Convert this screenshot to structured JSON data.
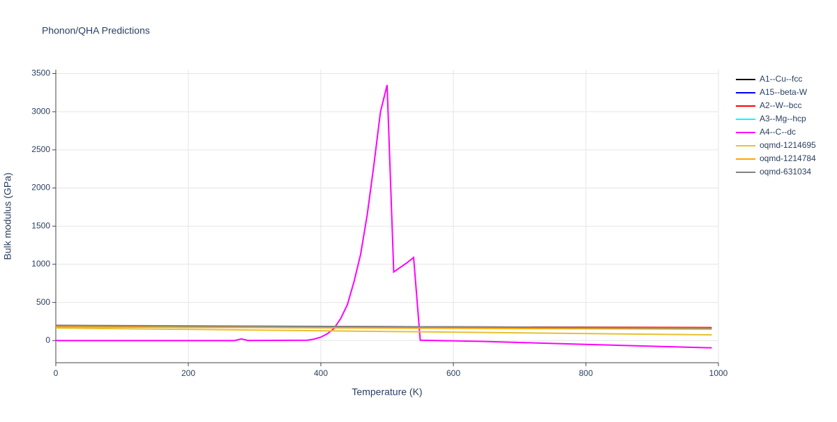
{
  "chart_data": {
    "type": "line",
    "title": "Phonon/QHA Predictions",
    "x_label": "Temperature (K)",
    "y_label": "Bulk modulus (GPa)",
    "xlim": [
      0,
      1000
    ],
    "ylim": [
      -290,
      3550
    ],
    "xticks": [
      0,
      200,
      400,
      600,
      800,
      1000
    ],
    "yticks": [
      0,
      500,
      1000,
      1500,
      2000,
      2500,
      3000,
      3500
    ],
    "grid": true,
    "legend": "right",
    "series": [
      {
        "name": "A1--Cu--fcc",
        "color": "#000000",
        "x": [
          0,
          990
        ],
        "values": [
          185,
          160
        ]
      },
      {
        "name": "A15--beta-W",
        "color": "#0000ff",
        "x": [
          0,
          990
        ],
        "values": [
          190,
          165
        ]
      },
      {
        "name": "A2--W--bcc",
        "color": "#ff0000",
        "x": [
          0,
          990
        ],
        "values": [
          195,
          170
        ]
      },
      {
        "name": "A3--Mg--hcp",
        "color": "#00ffff",
        "x": [
          0,
          990
        ],
        "values": [
          180,
          155
        ]
      },
      {
        "name": "A4--C--dc",
        "color": "#ff00ff",
        "x": [
          0,
          270,
          280,
          290,
          380,
          390,
          400,
          410,
          420,
          430,
          440,
          450,
          460,
          470,
          480,
          490,
          500,
          510,
          520,
          530,
          540,
          550,
          640,
          800,
          990
        ],
        "values": [
          0,
          0,
          22,
          2,
          5,
          20,
          45,
          90,
          160,
          290,
          470,
          770,
          1130,
          1650,
          2300,
          3000,
          3350,
          900,
          960,
          1020,
          1090,
          5,
          -10,
          -50,
          -95
        ]
      },
      {
        "name": "oqmd-1214695",
        "color": "#e8c030",
        "x": [
          0,
          990
        ],
        "values": [
          165,
          75
        ]
      },
      {
        "name": "oqmd-1214784",
        "color": "#ffa500",
        "x": [
          0,
          990
        ],
        "values": [
          180,
          150
        ]
      },
      {
        "name": "oqmd-631034",
        "color": "#808080",
        "x": [
          0,
          990
        ],
        "values": [
          200,
          165
        ]
      }
    ]
  }
}
